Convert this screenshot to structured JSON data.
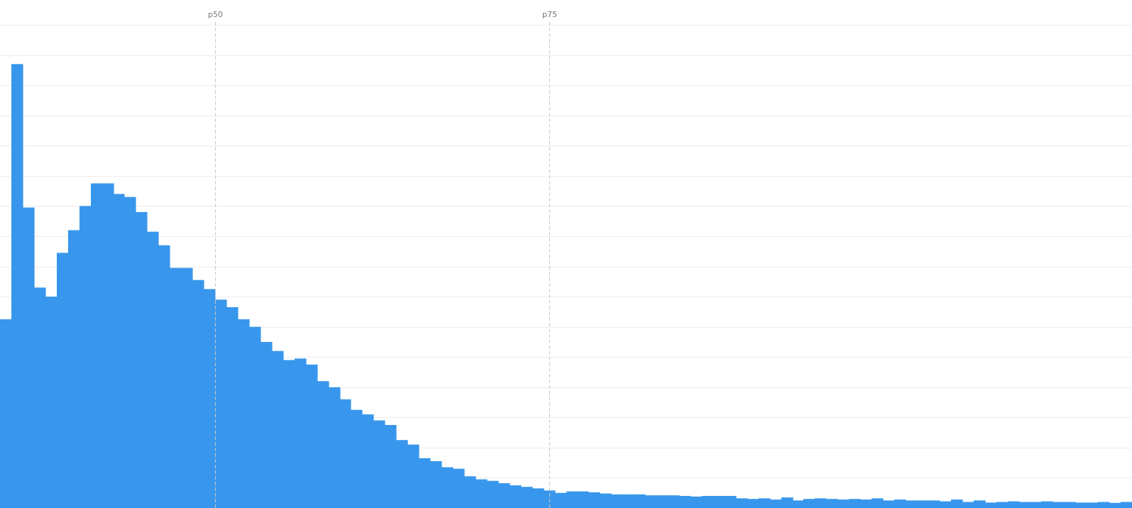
{
  "colors": {
    "bar": "#3897ec",
    "grid": "#ebebeb",
    "marker": "#c8c8c8",
    "marker_text": "#777777"
  },
  "chart_data": {
    "type": "bar",
    "title": "",
    "xlabel": "",
    "ylabel": "",
    "grid": true,
    "ylim": [
      0,
      16
    ],
    "bin_count": 100,
    "values": [
      6.25,
      14.7,
      9.95,
      7.3,
      7.0,
      8.45,
      9.2,
      10.0,
      10.75,
      10.75,
      10.4,
      10.3,
      9.8,
      9.15,
      8.7,
      7.95,
      7.95,
      7.55,
      7.25,
      6.9,
      6.65,
      6.25,
      6.0,
      5.5,
      5.2,
      4.9,
      4.95,
      4.75,
      4.2,
      4.0,
      3.6,
      3.25,
      3.1,
      2.9,
      2.75,
      2.25,
      2.1,
      1.65,
      1.55,
      1.35,
      1.3,
      1.05,
      0.95,
      0.9,
      0.82,
      0.75,
      0.7,
      0.65,
      0.58,
      0.5,
      0.55,
      0.55,
      0.52,
      0.48,
      0.45,
      0.45,
      0.45,
      0.42,
      0.42,
      0.42,
      0.4,
      0.38,
      0.4,
      0.4,
      0.4,
      0.32,
      0.3,
      0.32,
      0.28,
      0.35,
      0.25,
      0.3,
      0.32,
      0.3,
      0.28,
      0.3,
      0.28,
      0.32,
      0.25,
      0.28,
      0.25,
      0.25,
      0.25,
      0.22,
      0.28,
      0.2,
      0.25,
      0.18,
      0.2,
      0.22,
      0.2,
      0.2,
      0.22,
      0.2,
      0.2,
      0.18,
      0.18,
      0.2,
      0.17,
      0.2
    ],
    "percentiles": [
      {
        "label": "p50",
        "bin": 19
      },
      {
        "label": "p75",
        "bin": 48.5
      }
    ]
  }
}
